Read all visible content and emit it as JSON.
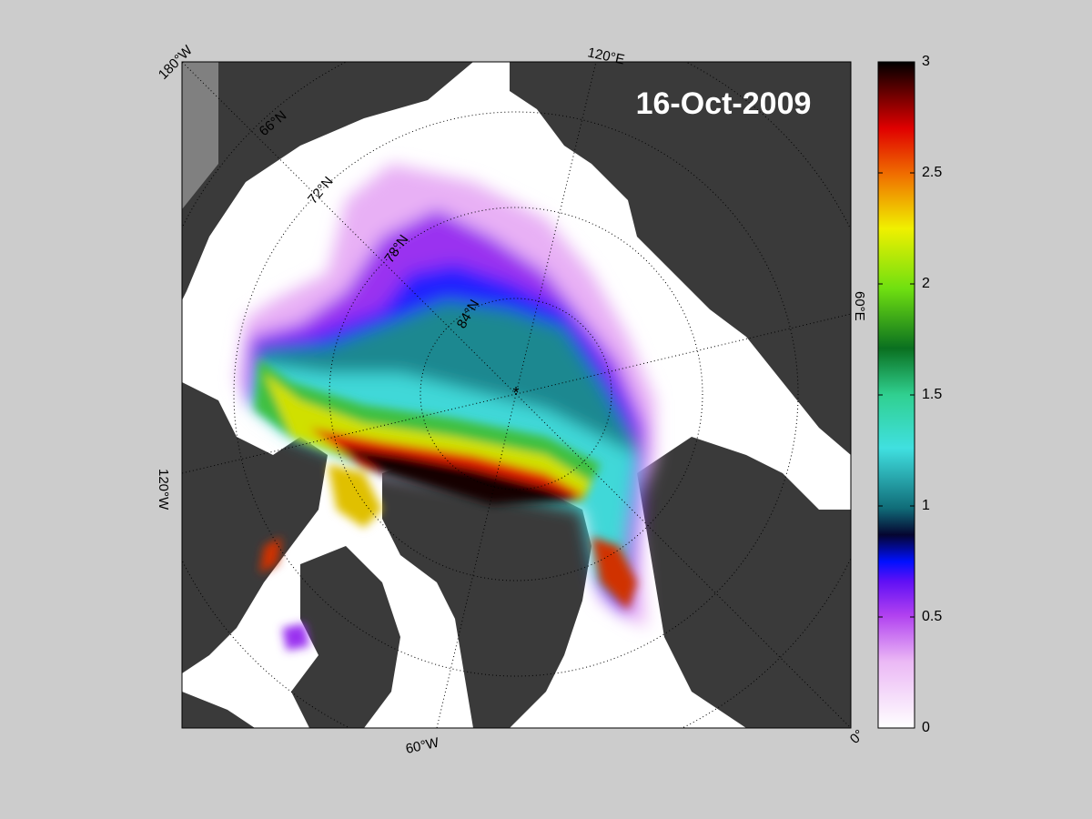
{
  "title": "16-Oct-2009",
  "latitude_labels": [
    "66°N",
    "72°N",
    "78°N",
    "84°N"
  ],
  "longitude_labels": [
    "180°W",
    "120°E",
    "60°E",
    "0°",
    "60°W",
    "120°W"
  ],
  "colorbar": {
    "range": [
      0,
      3
    ],
    "ticks": [
      0,
      0.5,
      1,
      1.5,
      2,
      2.5,
      3
    ]
  }
}
